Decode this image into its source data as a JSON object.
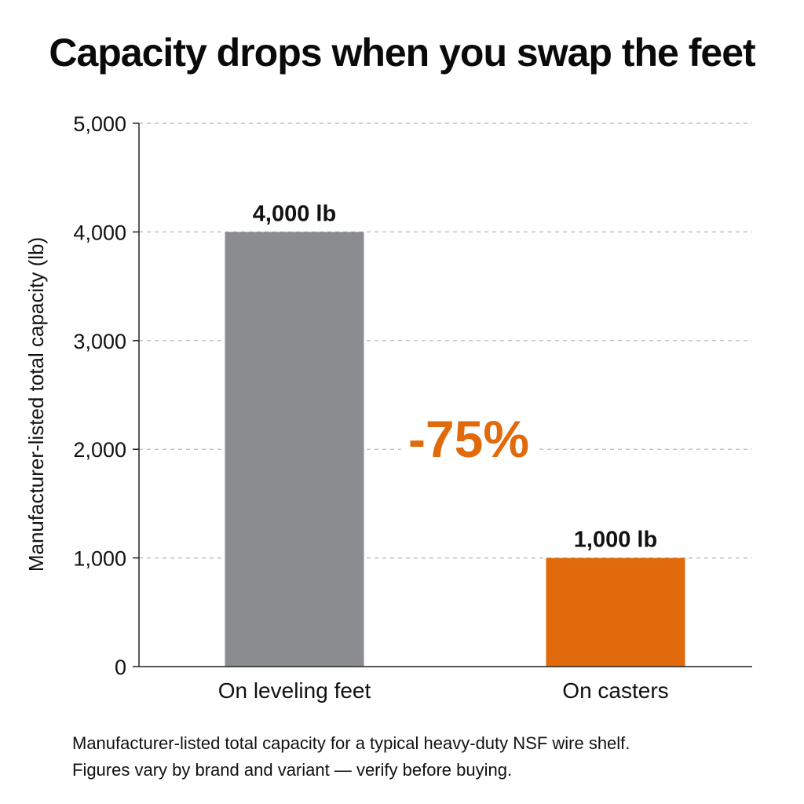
{
  "chart_data": {
    "type": "bar",
    "title": "Capacity drops when you swap the feet",
    "ylabel": "Manufacturer-listed total capacity (lb)",
    "xlabel": "",
    "categories": [
      "On leveling feet",
      "On casters"
    ],
    "values": [
      4000,
      1000
    ],
    "value_labels": [
      "4,000 lb",
      "1,000 lb"
    ],
    "ylim": [
      0,
      5000
    ],
    "yticks": [
      0,
      1000,
      2000,
      3000,
      4000,
      5000
    ],
    "ytick_labels": [
      "0",
      "1,000",
      "2,000",
      "3,000",
      "4,000",
      "5,000"
    ],
    "grid": true,
    "legend": "none",
    "colors": [
      "#8a8c8f",
      "#e06a0c"
    ],
    "annotation": {
      "text": "-75%",
      "color": "#e06a0c"
    }
  },
  "caption": {
    "line1": "Manufacturer-listed total capacity for a typical heavy-duty NSF wire shelf.",
    "line2": "Figures vary by brand and variant — verify before buying."
  }
}
